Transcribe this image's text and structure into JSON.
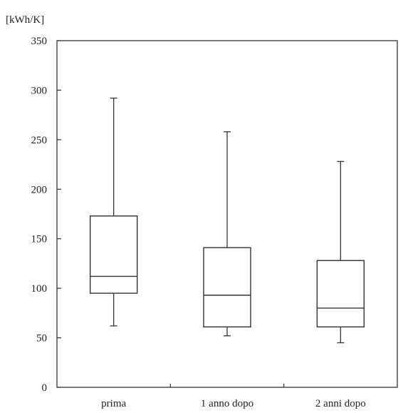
{
  "chart_data": {
    "type": "box",
    "y_unit_label": "[kWh/K]",
    "ylim": [
      0,
      350
    ],
    "yticks": [
      0,
      50,
      100,
      150,
      200,
      250,
      300,
      350
    ],
    "categories": [
      "prima",
      "1 anno dopo",
      "2  anni dopo"
    ],
    "boxes": [
      {
        "category": "prima",
        "whisker_low": 62,
        "q1": 95,
        "median": 112,
        "q3": 173,
        "whisker_high": 292
      },
      {
        "category": "1 anno dopo",
        "whisker_low": 52,
        "q1": 61,
        "median": 93,
        "q3": 141,
        "whisker_high": 258
      },
      {
        "category": "2  anni dopo",
        "whisker_low": 45,
        "q1": 61,
        "median": 80,
        "q3": 128,
        "whisker_high": 228
      }
    ],
    "grid": false,
    "legend": "none",
    "colors": {
      "line": "#333333",
      "box_fill": "#ffffff",
      "background": "#ffffff"
    }
  }
}
